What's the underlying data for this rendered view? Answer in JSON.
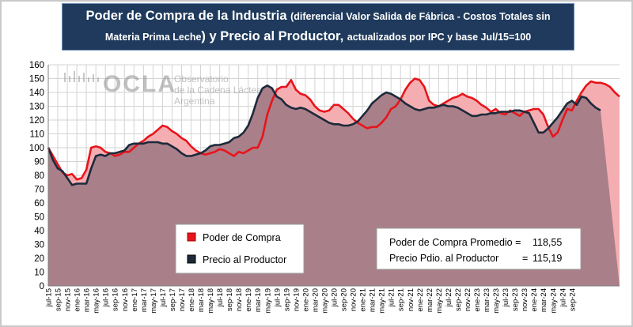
{
  "title": {
    "main1": "Poder de Compra de la Industria",
    "paren1": "(diferencial Valor Salida de Fábrica - Costos Totales sin",
    "paren2": "Materia Prima Leche",
    "close": ")",
    "main2": "y Precio al Productor,",
    "tail": "actualizados por IPC y base Jul/15=100"
  },
  "watermark": {
    "logo": "OCLA",
    "line1": "Observatorio",
    "line2": "de la Cadena Láctea",
    "line3": "Argentina"
  },
  "legend": {
    "items": [
      {
        "label": "Poder de Compra",
        "color": "#e8141b"
      },
      {
        "label": "Precio al Productor",
        "color": "#1c2a3a"
      }
    ]
  },
  "stats": {
    "row1_label": "Poder de Compra Promedio =",
    "row1_value": "118,55",
    "row2_label": "Precio Pdio. al Productor",
    "row2_eq": "=",
    "row2_value": "115,19"
  },
  "colors": {
    "poder_line": "#e8141b",
    "poder_fill": "#f4aeb2",
    "precio_line": "#1c2a3a",
    "precio_fill": "#a97f8a",
    "grid": "#d3d3d3"
  },
  "chart_data": {
    "type": "area",
    "ylim": [
      0,
      160
    ],
    "yticks": [
      0,
      10,
      20,
      30,
      40,
      50,
      60,
      70,
      80,
      90,
      100,
      110,
      120,
      130,
      140,
      150,
      160
    ],
    "grid": true,
    "legend_position": "bottom-left",
    "x_tick_labels": [
      "jul-15",
      "sep-15",
      "nov-15",
      "ene-16",
      "mar-16",
      "may-16",
      "jul-16",
      "sep-16",
      "nov-16",
      "ene-17",
      "mar-17",
      "may-17",
      "jul-17",
      "sep-17",
      "nov-17",
      "ene-18",
      "mar-18",
      "may-18",
      "jul-18",
      "sep-18",
      "nov-18",
      "ene-19",
      "mar-19",
      "may-19",
      "jul-19",
      "sep-19",
      "nov-19",
      "ene-20",
      "mar-20",
      "may-20",
      "jul-20",
      "sep-20",
      "nov-20",
      "ene-21",
      "mar-21",
      "may-21",
      "jul-21",
      "sep-21",
      "nov-21",
      "ene-22",
      "mar-22",
      "may-22",
      "jul-22",
      "sep-22",
      "nov-22",
      "ene-23",
      "mar-23",
      "may-23",
      "jul-23",
      "sep-23",
      "nov-23",
      "ene-24",
      "mar-24",
      "may-24",
      "jul-24",
      "sep-24"
    ],
    "series": [
      {
        "name": "Poder de Compra",
        "values": [
          100,
          94,
          88,
          82,
          80,
          81,
          77,
          78,
          84,
          100,
          101,
          100,
          97,
          96,
          94,
          95,
          97,
          97,
          100,
          103,
          105,
          108,
          110,
          113,
          116,
          115,
          112,
          110,
          107,
          105,
          101,
          98,
          96,
          95,
          96,
          97,
          99,
          98,
          96,
          94,
          97,
          96,
          98,
          100,
          100,
          108,
          124,
          134,
          142,
          144,
          144,
          149,
          142,
          139,
          138,
          135,
          130,
          127,
          126,
          127,
          131,
          131,
          128,
          125,
          121,
          118,
          116,
          114,
          115,
          115,
          118,
          122,
          128,
          130,
          135,
          142,
          147,
          150,
          149,
          144,
          134,
          131,
          130,
          132,
          134,
          136,
          137,
          139,
          137,
          136,
          134,
          131,
          129,
          126,
          128,
          125,
          124,
          127,
          125,
          123,
          126,
          127,
          128,
          128,
          124,
          115,
          108,
          111,
          120,
          128,
          127,
          134,
          140,
          145,
          148,
          147,
          147,
          146,
          144,
          140,
          137
        ]
      },
      {
        "name": "Precio al Productor",
        "values": [
          100,
          91,
          85,
          83,
          78,
          73,
          74,
          74,
          74,
          85,
          94,
          95,
          94,
          96,
          96,
          97,
          98,
          102,
          103,
          103,
          103,
          104,
          104,
          104,
          103,
          103,
          101,
          99,
          96,
          94,
          94,
          95,
          96,
          98,
          101,
          102,
          102,
          103,
          104,
          107,
          108,
          111,
          116,
          125,
          136,
          143,
          145,
          143,
          137,
          135,
          131,
          129,
          128,
          129,
          128,
          126,
          124,
          122,
          120,
          118,
          117,
          117,
          116,
          116,
          117,
          119,
          123,
          127,
          132,
          135,
          138,
          140,
          139,
          137,
          135,
          132,
          130,
          128,
          127,
          128,
          129,
          129,
          130,
          131,
          130,
          130,
          129,
          127,
          125,
          123,
          123,
          124,
          124,
          125,
          125,
          126,
          126,
          126,
          127,
          127,
          126,
          125,
          118,
          111,
          111,
          114,
          118,
          122,
          127,
          132,
          134,
          131,
          137,
          136,
          132,
          129,
          127
        ]
      }
    ]
  }
}
